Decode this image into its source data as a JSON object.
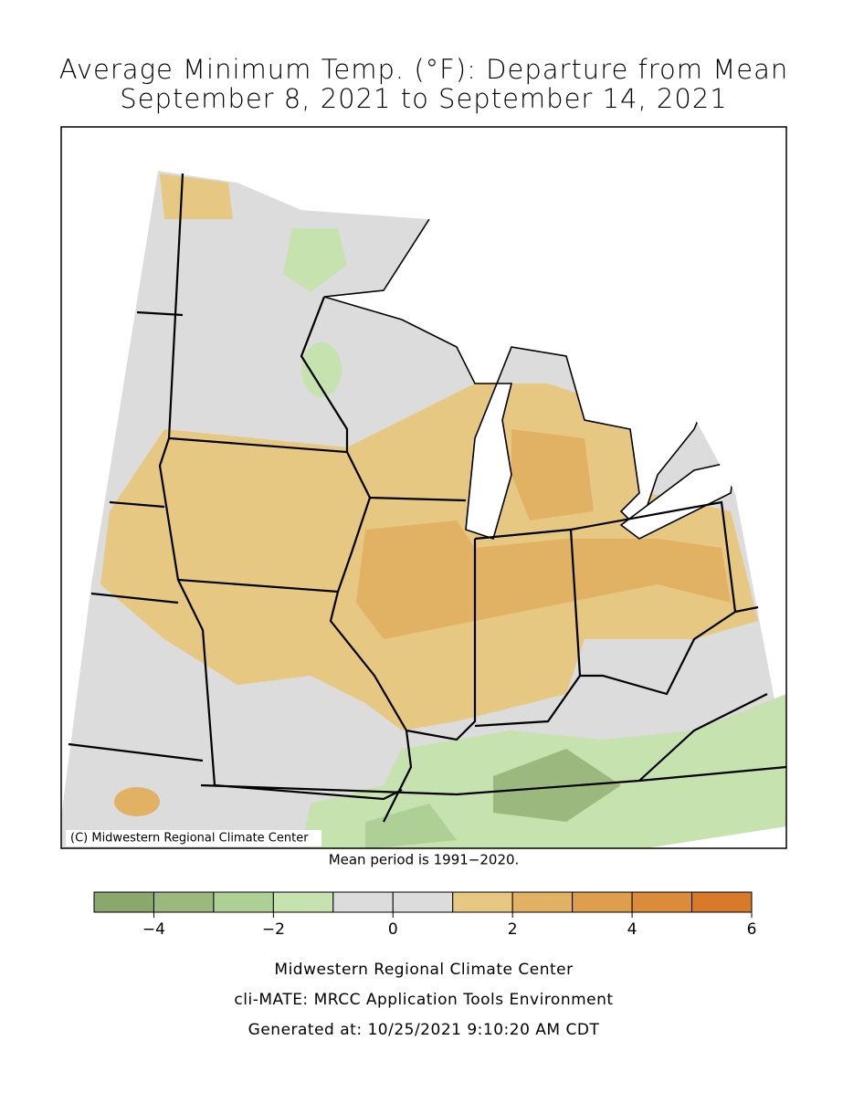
{
  "header": {
    "title": [
      "Average Minimum Temp. (°F): Departure from Mean",
      "September 8, 2021 to September 14, 2021"
    ]
  },
  "map": {
    "copyright": "(C) Midwestern Regional Climate Center",
    "note": "Mean period is 1991−2020."
  },
  "colorbar": {
    "levels": [
      -5,
      -4,
      -3,
      -2,
      -1,
      0,
      1,
      2,
      3,
      4,
      5,
      6
    ],
    "colors": [
      "#8aa86e",
      "#9bb87f",
      "#aed096",
      "#c6e2ae",
      "#dcdcdc",
      "#dcdcdc",
      "#e6c882",
      "#e2b264",
      "#dd9e4e",
      "#da8c3a",
      "#d97a2a"
    ],
    "ticks": [
      {
        "value": -4,
        "label": "−4"
      },
      {
        "value": -2,
        "label": "−2"
      },
      0,
      2,
      4,
      6
    ]
  },
  "footer": {
    "credits": [
      "Midwestern Regional Climate Center",
      "cli-MATE: MRCC Application Tools Environment",
      "Generated at: 10/25/2021 9:10:20 AM CDT"
    ]
  }
}
